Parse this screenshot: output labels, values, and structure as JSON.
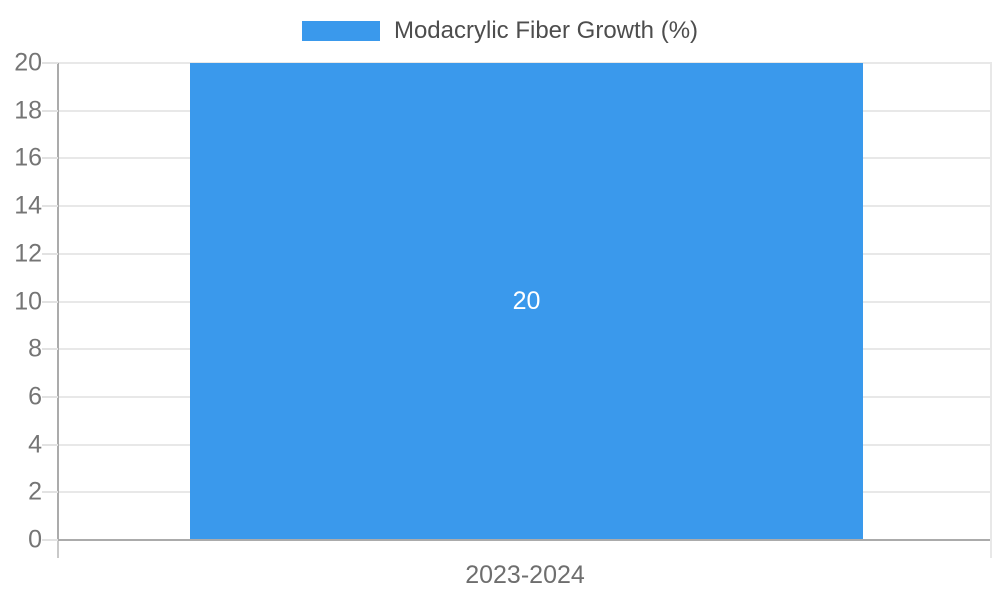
{
  "chart_data": {
    "type": "bar",
    "categories": [
      "2023-2024"
    ],
    "series": [
      {
        "name": "Modacrylic Fiber Growth (%)",
        "values": [
          20
        ],
        "color": "#3A99EC"
      }
    ],
    "bar_value_labels": [
      "20"
    ],
    "title": "",
    "xlabel": "",
    "ylabel": "",
    "ylim": [
      0,
      20
    ],
    "yticks": [
      0,
      2,
      4,
      6,
      8,
      10,
      12,
      14,
      16,
      18,
      20
    ],
    "grid": true,
    "legend_position": "top-center"
  },
  "colors": {
    "bar": "#3A99EC",
    "grid_line": "#e8e8e8",
    "axis_line": "#ababab",
    "tick_label_text": "#757575",
    "legend_text": "#4d4d4d",
    "bar_label_text": "#ffffff",
    "background": "#ffffff"
  }
}
